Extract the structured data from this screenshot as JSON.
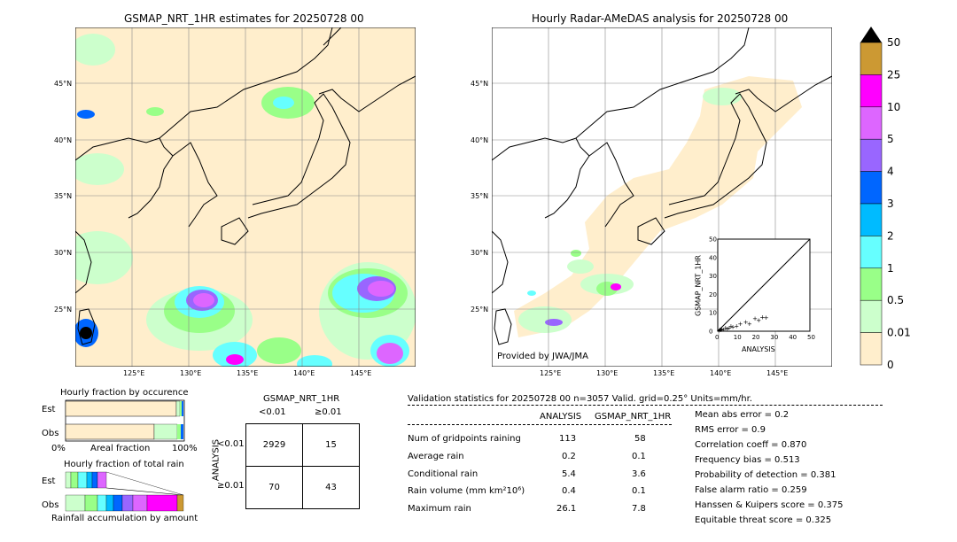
{
  "left_map": {
    "title": "GSMAP_NRT_1HR estimates for 20250728 00",
    "lat_labels": [
      "45°N",
      "40°N",
      "35°N",
      "30°N",
      "25°N"
    ],
    "lon_labels": [
      "125°E",
      "130°E",
      "135°E",
      "140°E",
      "145°E"
    ]
  },
  "right_map": {
    "title": "Hourly Radar-AMeDAS analysis for 20250728 00",
    "lat_labels": [
      "45°N",
      "40°N",
      "35°N",
      "30°N",
      "25°N"
    ],
    "lon_labels": [
      "125°E",
      "130°E",
      "135°E",
      "140°E",
      "145°E"
    ],
    "provider": "Provided by JWA/JMA"
  },
  "colorbar": {
    "levels": [
      "50",
      "25",
      "10",
      "5",
      "4",
      "3",
      "2",
      "1",
      "0.5",
      "0.01",
      "0"
    ],
    "colors": [
      "#cc9933",
      "#ff00ff",
      "#dd66ff",
      "#9966ff",
      "#0066ff",
      "#00bbff",
      "#66ffff",
      "#99ff88",
      "#ccffcc",
      "#ffeecc"
    ]
  },
  "scatter": {
    "ylabel": "GSMAP_NRT_1HR",
    "xlabel": "ANALYSIS",
    "ticks": [
      "0",
      "10",
      "20",
      "30",
      "40",
      "50"
    ]
  },
  "fraction_occurrence": {
    "title": "Hourly fraction by occurence",
    "row_labels": [
      "Est",
      "Obs"
    ],
    "xlabel": "Areal fraction",
    "x_left": "0%",
    "x_right": "100%"
  },
  "fraction_total": {
    "title": "Hourly fraction of total rain",
    "row_labels": [
      "Est",
      "Obs"
    ],
    "xlabel": "Rainfall accumulation by amount"
  },
  "contingency": {
    "title": "GSMAP_NRT_1HR",
    "col_labels": [
      "<0.01",
      "≥0.01"
    ],
    "row_axis": "ANALYSIS",
    "row_labels": [
      "<0.01",
      "≥0.01"
    ],
    "cells": [
      [
        "2929",
        "15"
      ],
      [
        "70",
        "43"
      ]
    ]
  },
  "validation": {
    "header": "Validation statistics for 20250728 00  n=3057 Valid. grid=0.25° Units=mm/hr.",
    "col_analysis": "ANALYSIS",
    "col_gsmap": "GSMAP_NRT_1HR",
    "rows": [
      {
        "label": "Num of gridpoints raining",
        "a": "113",
        "g": "58"
      },
      {
        "label": "Average rain",
        "a": "0.2",
        "g": "0.1"
      },
      {
        "label": "Conditional rain",
        "a": "5.4",
        "g": "3.6"
      },
      {
        "label": "Rain volume (mm km²10⁶)",
        "a": "0.4",
        "g": "0.1"
      },
      {
        "label": "Maximum rain",
        "a": "26.1",
        "g": "7.8"
      }
    ],
    "scores": [
      "Mean abs error =    0.2",
      "RMS error =    0.9",
      "Correlation coeff =  0.870",
      "Frequency bias =  0.513",
      "Probability of detection =  0.381",
      "False alarm ratio =  0.259",
      "Hanssen & Kuipers score =  0.375",
      "Equitable threat score =  0.325"
    ]
  },
  "chart_data": {
    "type": "scatter",
    "title": "",
    "xlabel": "ANALYSIS",
    "ylabel": "GSMAP_NRT_1HR",
    "xlim": [
      0,
      50
    ],
    "ylim": [
      0,
      50
    ],
    "points": [
      [
        0.5,
        0.5
      ],
      [
        1,
        1
      ],
      [
        1.5,
        0.8
      ],
      [
        2,
        1.5
      ],
      [
        3,
        1
      ],
      [
        4,
        2
      ],
      [
        5,
        1.5
      ],
      [
        6,
        2
      ],
      [
        7,
        3
      ],
      [
        8,
        2.5
      ],
      [
        10,
        3
      ],
      [
        12,
        4
      ],
      [
        15,
        5
      ],
      [
        17,
        4
      ],
      [
        20,
        7
      ],
      [
        22,
        6
      ],
      [
        24,
        7.8
      ],
      [
        26.1,
        7.5
      ]
    ]
  }
}
